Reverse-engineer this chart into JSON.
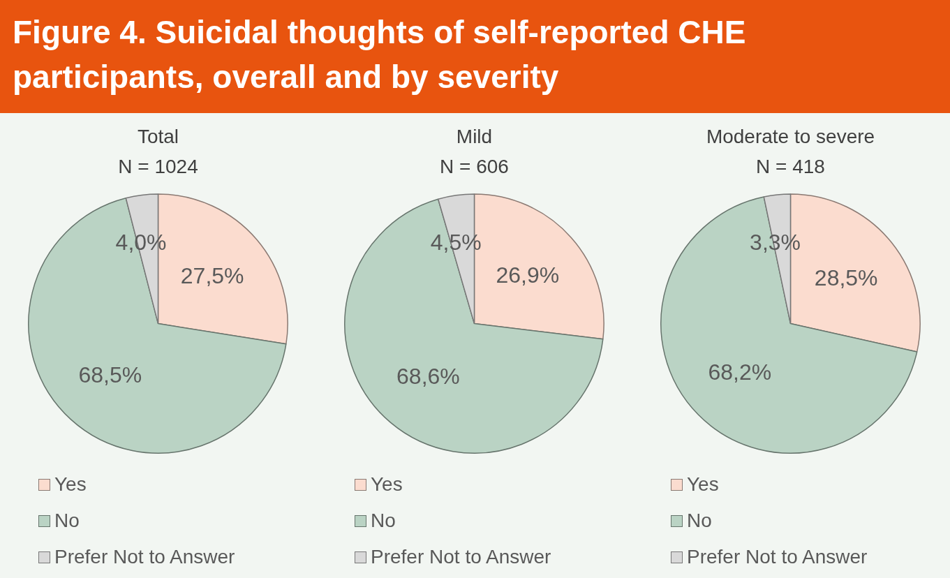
{
  "chart_data": [
    {
      "type": "other",
      "title": "Figure 4. Suicidal thoughts of self-reported CHE participants, overall and by severity"
    },
    {
      "type": "pie",
      "title": "Total",
      "subtitle": "N = 1024",
      "categories": [
        "Yes",
        "No",
        "Prefer Not to Answer"
      ],
      "values": [
        27.5,
        68.5,
        4.0
      ],
      "value_labels": [
        "27,5%",
        "68,5%",
        "4,0%"
      ],
      "colors": [
        "#fbdccf",
        "#bad3c4",
        "#d9d9d9"
      ],
      "legend": "bottom"
    },
    {
      "type": "pie",
      "title": "Mild",
      "subtitle": "N = 606",
      "categories": [
        "Yes",
        "No",
        "Prefer Not to Answer"
      ],
      "values": [
        26.9,
        68.6,
        4.5
      ],
      "value_labels": [
        "26,9%",
        "68,6%",
        "4,5%"
      ],
      "colors": [
        "#fbdccf",
        "#bad3c4",
        "#d9d9d9"
      ],
      "legend": "bottom"
    },
    {
      "type": "pie",
      "title": "Moderate to severe",
      "subtitle": "N = 418",
      "categories": [
        "Yes",
        "No",
        "Prefer Not to Answer"
      ],
      "values": [
        28.5,
        68.2,
        3.3
      ],
      "value_labels": [
        "28,5%",
        "68,2%",
        "3,3%"
      ],
      "colors": [
        "#fbdccf",
        "#bad3c4",
        "#d9d9d9"
      ],
      "legend": "bottom"
    }
  ]
}
